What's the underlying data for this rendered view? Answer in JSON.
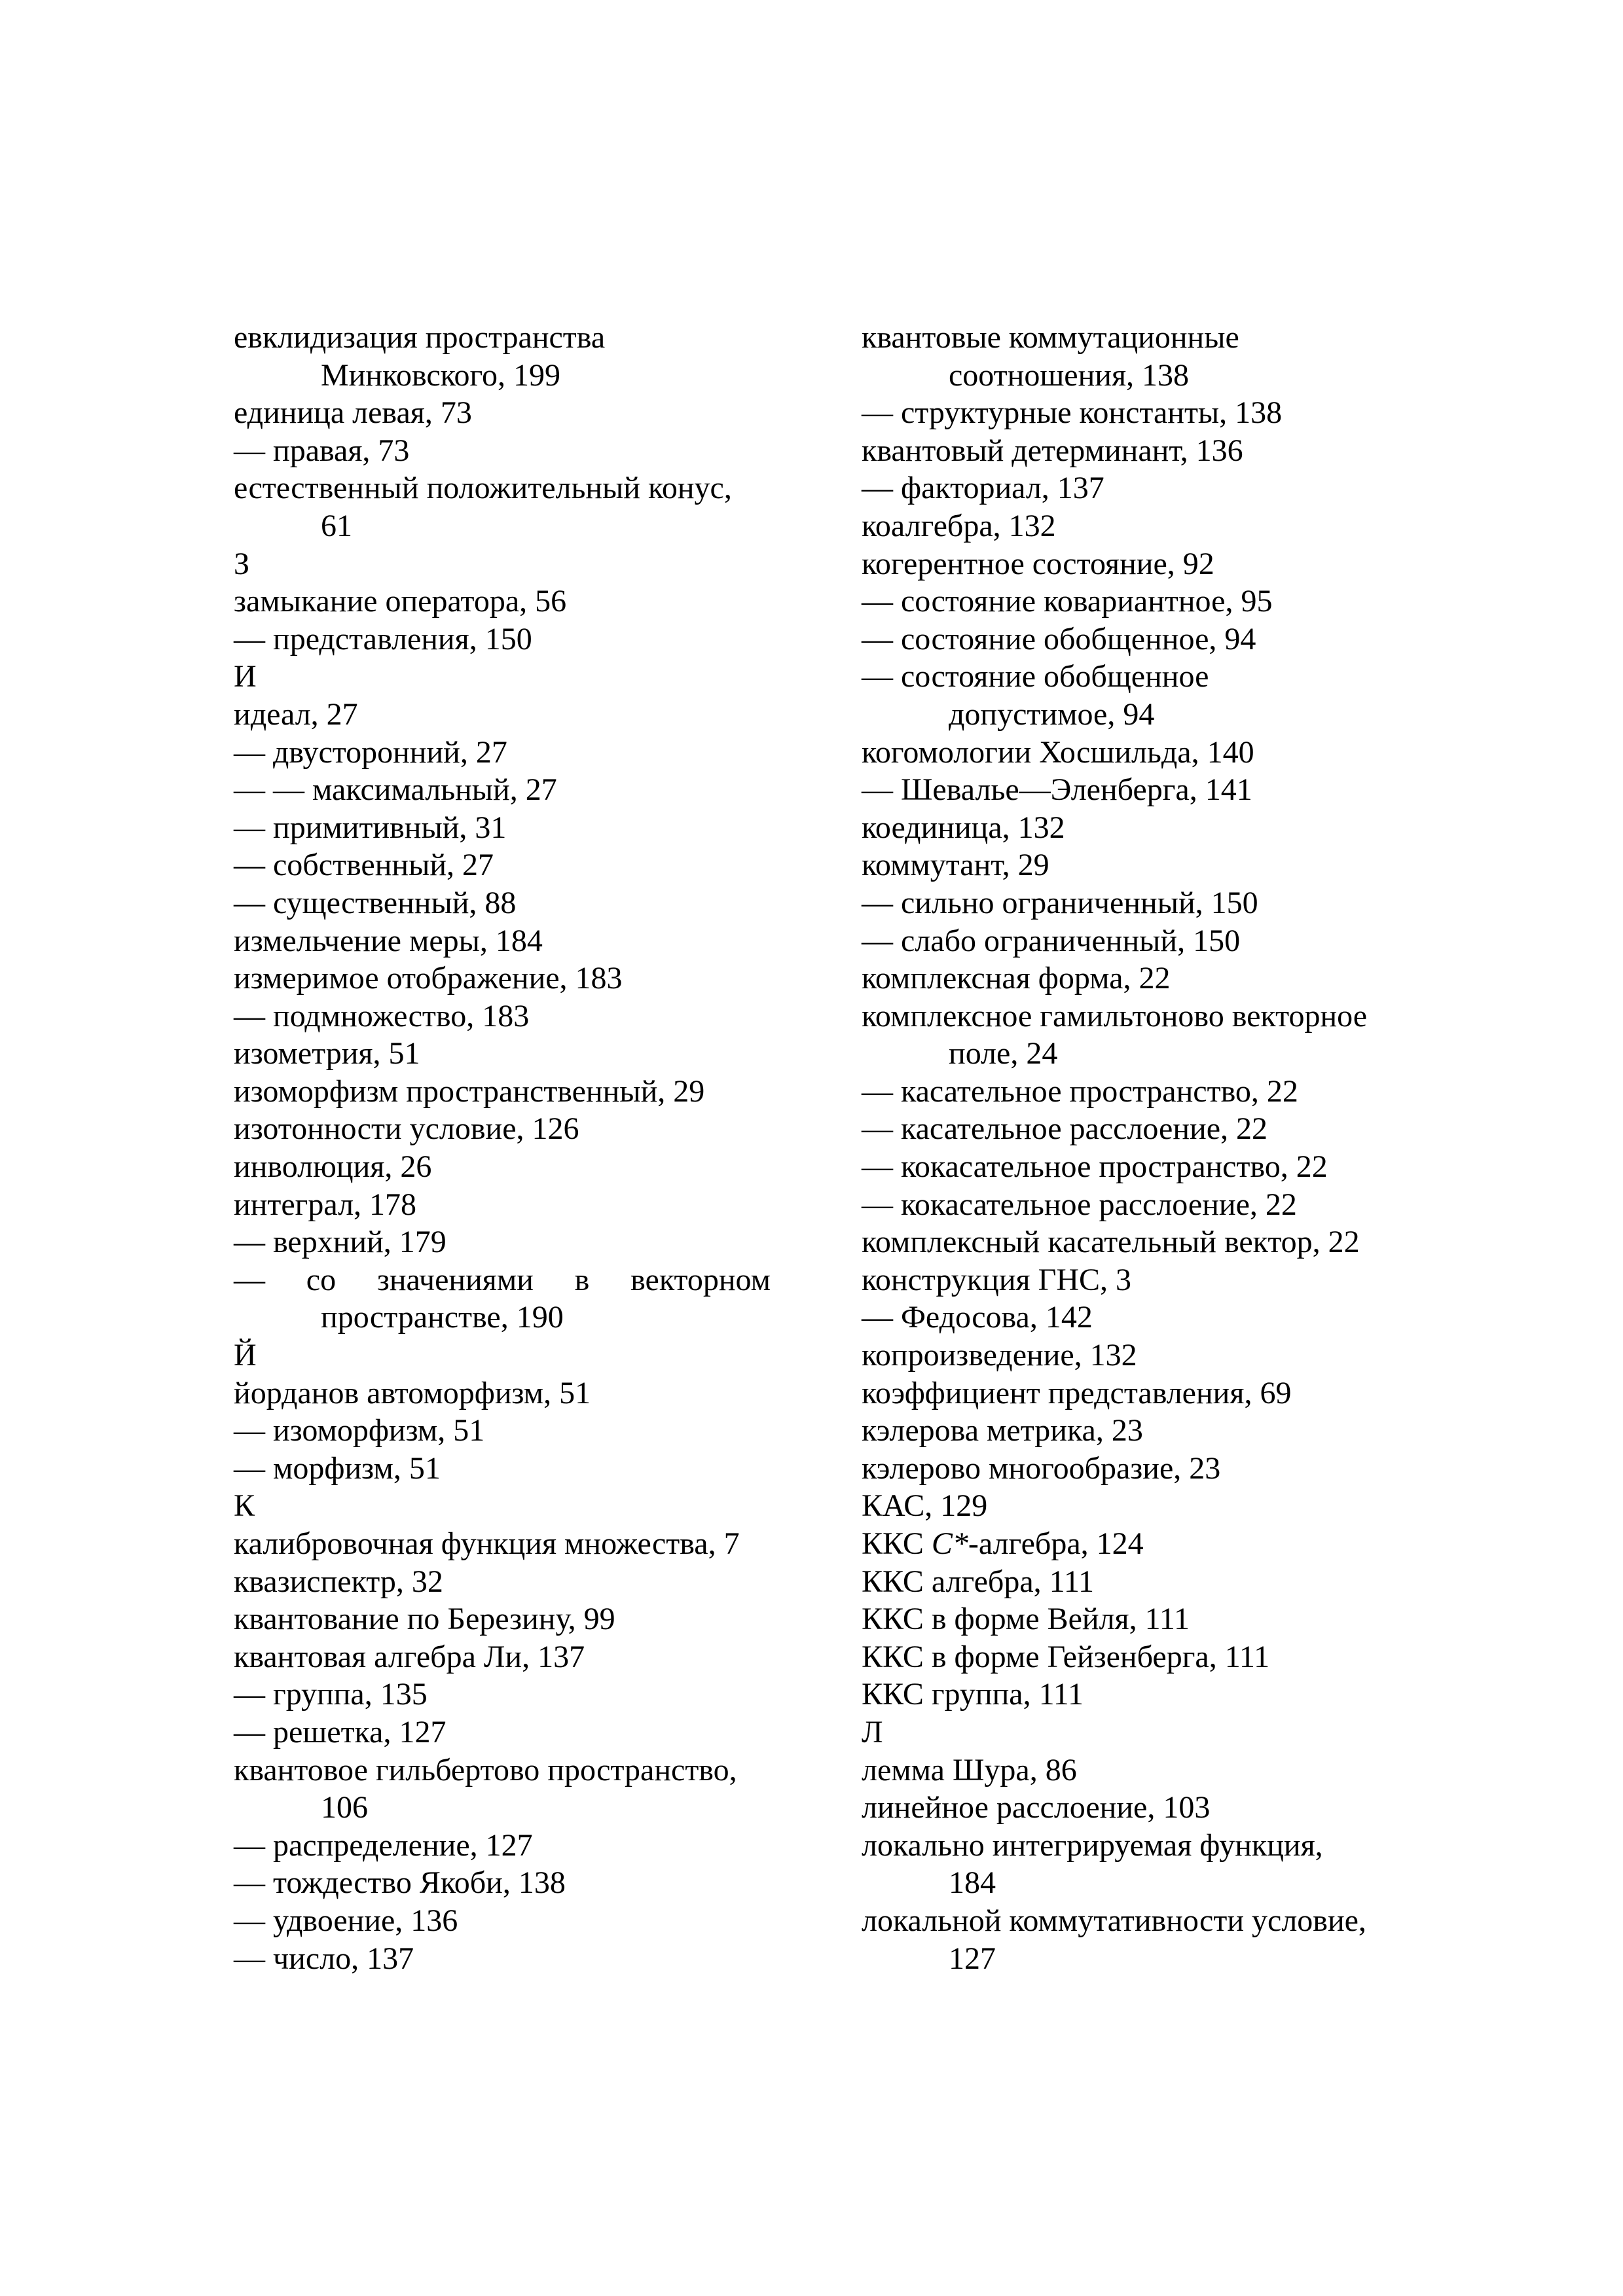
{
  "page": {
    "columns": [
      {
        "entries": [
          {
            "lines": [
              "евклидизация пространства",
              "Минковского, 199"
            ]
          },
          {
            "lines": [
              "единица левая, 73"
            ]
          },
          {
            "lines": [
              "— правая, 73"
            ]
          },
          {
            "lines": [
              "естественный положительный конус,",
              "61"
            ]
          },
          {
            "lines": [
              "З"
            ],
            "letter": true
          },
          {
            "lines": [
              "замыкание оператора, 56"
            ]
          },
          {
            "lines": [
              "— представления, 150"
            ]
          },
          {
            "lines": [
              "И"
            ],
            "letter": true
          },
          {
            "lines": [
              "идеал, 27"
            ]
          },
          {
            "lines": [
              "— двусторонний, 27"
            ]
          },
          {
            "lines": [
              "— — максимальный, 27"
            ]
          },
          {
            "lines": [
              "— примитивный, 31"
            ]
          },
          {
            "lines": [
              "— собственный, 27"
            ]
          },
          {
            "lines": [
              "— существенный, 88"
            ]
          },
          {
            "lines": [
              "измельчение меры, 184"
            ]
          },
          {
            "lines": [
              "измеримое отображение, 183"
            ]
          },
          {
            "lines": [
              "— подмножество, 183"
            ]
          },
          {
            "lines": [
              "изометрия, 51"
            ]
          },
          {
            "lines": [
              "изоморфизм пространственный, 29"
            ]
          },
          {
            "lines": [
              "изотонности условие, 126"
            ]
          },
          {
            "lines": [
              "инволюция, 26"
            ]
          },
          {
            "lines": [
              "интеграл, 178"
            ]
          },
          {
            "lines": [
              "— верхний, 179"
            ]
          },
          {
            "lines": [
              "— со значениями в векторном",
              "пространстве, 190"
            ],
            "justify_first": true
          },
          {
            "lines": [
              "Й"
            ],
            "letter": true
          },
          {
            "lines": [
              "йорданов автоморфизм, 51"
            ]
          },
          {
            "lines": [
              "— изоморфизм, 51"
            ]
          },
          {
            "lines": [
              "— морфизм, 51"
            ]
          },
          {
            "lines": [
              "К"
            ],
            "letter": true
          },
          {
            "lines": [
              "калибровочная функция множества, 7"
            ]
          },
          {
            "lines": [
              "квазиспектр, 32"
            ]
          },
          {
            "lines": [
              "квантование по Березину, 99"
            ]
          },
          {
            "lines": [
              "квантовая алгебра Ли, 137"
            ]
          },
          {
            "lines": [
              "— группа, 135"
            ]
          },
          {
            "lines": [
              "— решетка, 127"
            ]
          },
          {
            "lines": [
              "квантовое гильбертово пространство,",
              "106"
            ]
          },
          {
            "lines": [
              "— распределение, 127"
            ]
          },
          {
            "lines": [
              "— тождество Якоби, 138"
            ]
          },
          {
            "lines": [
              "— удвоение, 136"
            ]
          },
          {
            "lines": [
              "— число, 137"
            ]
          }
        ]
      },
      {
        "entries": [
          {
            "lines": [
              "квантовые коммутационные",
              "соотношения, 138"
            ]
          },
          {
            "lines": [
              "— структурные константы, 138"
            ]
          },
          {
            "lines": [
              "квантовый детерминант, 136"
            ]
          },
          {
            "lines": [
              "— факториал, 137"
            ]
          },
          {
            "lines": [
              "коалгебра, 132"
            ]
          },
          {
            "lines": [
              "когерентное состояние, 92"
            ]
          },
          {
            "lines": [
              "— состояние ковариантное, 95"
            ]
          },
          {
            "lines": [
              "— состояние обобщенное, 94"
            ]
          },
          {
            "lines": [
              "— состояние обобщенное",
              "допустимое, 94"
            ]
          },
          {
            "lines": [
              "когомологии Хосшильда, 140"
            ]
          },
          {
            "lines": [
              "— Шевалье—Эленберга, 141"
            ]
          },
          {
            "lines": [
              "коединица, 132"
            ]
          },
          {
            "lines": [
              "коммутант, 29"
            ]
          },
          {
            "lines": [
              "— сильно ограниченный, 150"
            ]
          },
          {
            "lines": [
              "— слабо ограниченный, 150"
            ]
          },
          {
            "lines": [
              "комплексная форма, 22"
            ]
          },
          {
            "lines": [
              "комплексное гамильтоново векторное",
              "поле, 24"
            ]
          },
          {
            "lines": [
              "— касательное пространство, 22"
            ]
          },
          {
            "lines": [
              "— касательное расслоение, 22"
            ]
          },
          {
            "lines": [
              "— кокасательное пространство, 22"
            ]
          },
          {
            "lines": [
              "— кокасательное расслоение, 22"
            ]
          },
          {
            "lines": [
              "комплексный касательный вектор, 22"
            ]
          },
          {
            "lines": [
              "конструкция ГНС, 3"
            ]
          },
          {
            "lines": [
              "— Федосова, 142"
            ]
          },
          {
            "lines": [
              "копроизведение, 132"
            ]
          },
          {
            "lines": [
              "коэффициент представления, 69"
            ]
          },
          {
            "lines": [
              "кэлерова метрика, 23"
            ]
          },
          {
            "lines": [
              "кэлерово многообразие, 23"
            ]
          },
          {
            "lines": [
              "КАС, 129"
            ]
          },
          {
            "parts": {
              "pre": "ККС ",
              "it": "C*",
              "post": "-алгебра, 124"
            }
          },
          {
            "lines": [
              "ККС алгебра, 111"
            ]
          },
          {
            "lines": [
              "ККС в форме Вейля, 111"
            ]
          },
          {
            "lines": [
              "ККС в форме Гейзенберга, 111"
            ]
          },
          {
            "lines": [
              "ККС группа, 111"
            ]
          },
          {
            "lines": [
              "Л"
            ],
            "letter": true
          },
          {
            "lines": [
              "лемма Шура, 86"
            ]
          },
          {
            "lines": [
              "линейное расслоение, 103"
            ]
          },
          {
            "lines": [
              "локально интегрируемая функция,",
              "184"
            ]
          },
          {
            "lines": [
              "локальной коммутативности условие,",
              "127"
            ]
          }
        ]
      }
    ]
  }
}
